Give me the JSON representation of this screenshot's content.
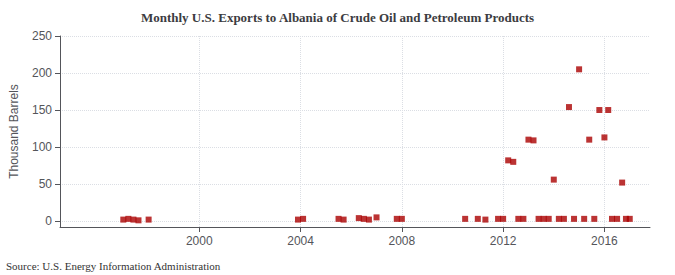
{
  "chart_data": {
    "type": "scatter",
    "title": "Monthly U.S. Exports to Albania of Crude Oil and Petroleum Products",
    "ylabel": "Thousand Barrels",
    "annotations": [
      "Source: U.S. Energy Information Administration"
    ],
    "x": [
      1997.0,
      1997.2,
      1997.4,
      1997.6,
      1998.0,
      2003.9,
      2004.1,
      2005.5,
      2005.7,
      2006.3,
      2006.5,
      2006.7,
      2007.0,
      2007.8,
      2008.0,
      2010.5,
      2011.0,
      2011.3,
      2011.8,
      2012.0,
      2012.2,
      2012.4,
      2012.6,
      2012.8,
      2013.0,
      2013.2,
      2013.4,
      2013.6,
      2013.8,
      2014.0,
      2014.2,
      2014.4,
      2014.6,
      2014.8,
      2015.0,
      2015.2,
      2015.4,
      2015.6,
      2015.8,
      2016.0,
      2016.15,
      2016.3,
      2016.5,
      2016.7,
      2016.85,
      2017.0
    ],
    "values": [
      2,
      3,
      2,
      1,
      2,
      2,
      3,
      3,
      2,
      4,
      3,
      2,
      5,
      3,
      3,
      3,
      3,
      2,
      3,
      3,
      82,
      80,
      3,
      3,
      110,
      109,
      3,
      3,
      3,
      56,
      3,
      3,
      154,
      3,
      205,
      3,
      110,
      3,
      150,
      113,
      150,
      3,
      3,
      52,
      3,
      3
    ],
    "color": "#aa0000",
    "marker": "square",
    "xlim": [
      1994.5,
      2017.8
    ],
    "xticks": [
      2000,
      2004,
      2008,
      2012,
      2016
    ],
    "ylim": [
      -8,
      250
    ],
    "yticks": [
      0,
      50,
      100,
      150,
      200,
      250
    ],
    "grid": true
  }
}
